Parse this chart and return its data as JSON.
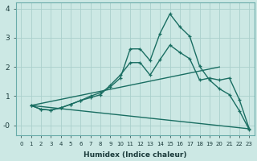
{
  "xlabel": "Humidex (Indice chaleur)",
  "bg_color": "#cce8e4",
  "line_color": "#1a6e62",
  "grid_color": "#aad0cc",
  "xlim": [
    -0.5,
    23.5
  ],
  "ylim": [
    -0.35,
    4.2
  ],
  "xticks": [
    0,
    1,
    2,
    3,
    4,
    5,
    6,
    7,
    8,
    9,
    10,
    11,
    12,
    13,
    14,
    15,
    16,
    17,
    18,
    19,
    20,
    21,
    22,
    23
  ],
  "yticks": [
    0,
    1,
    2,
    3,
    4
  ],
  "ytick_labels": [
    "-0",
    "1",
    "2",
    "3",
    "4"
  ],
  "line1_x": [
    1,
    2,
    3,
    4,
    5,
    6,
    7,
    8,
    9,
    10,
    11,
    12,
    13,
    14,
    15,
    16,
    17,
    18,
    19,
    20,
    21,
    22,
    23
  ],
  "line1_y": [
    0.68,
    0.55,
    0.52,
    0.6,
    0.72,
    0.85,
    0.95,
    1.05,
    1.38,
    1.72,
    2.15,
    2.15,
    1.72,
    2.25,
    2.75,
    2.5,
    2.28,
    1.55,
    1.62,
    1.55,
    1.62,
    0.88,
    -0.12
  ],
  "line2_x": [
    1,
    2,
    3,
    4,
    5,
    6,
    7,
    8,
    9,
    10,
    11,
    12,
    13,
    14,
    15,
    16,
    17,
    18,
    19,
    20,
    21,
    22,
    23
  ],
  "line2_y": [
    0.68,
    0.55,
    0.52,
    0.6,
    0.72,
    0.85,
    1.0,
    1.12,
    1.32,
    1.62,
    2.62,
    2.62,
    2.22,
    3.15,
    3.82,
    3.38,
    3.05,
    2.02,
    1.55,
    1.25,
    1.05,
    0.5,
    -0.15
  ],
  "line3_x": [
    1,
    20
  ],
  "line3_y": [
    0.68,
    2.0
  ],
  "line4_x": [
    1,
    23
  ],
  "line4_y": [
    0.68,
    -0.12
  ]
}
